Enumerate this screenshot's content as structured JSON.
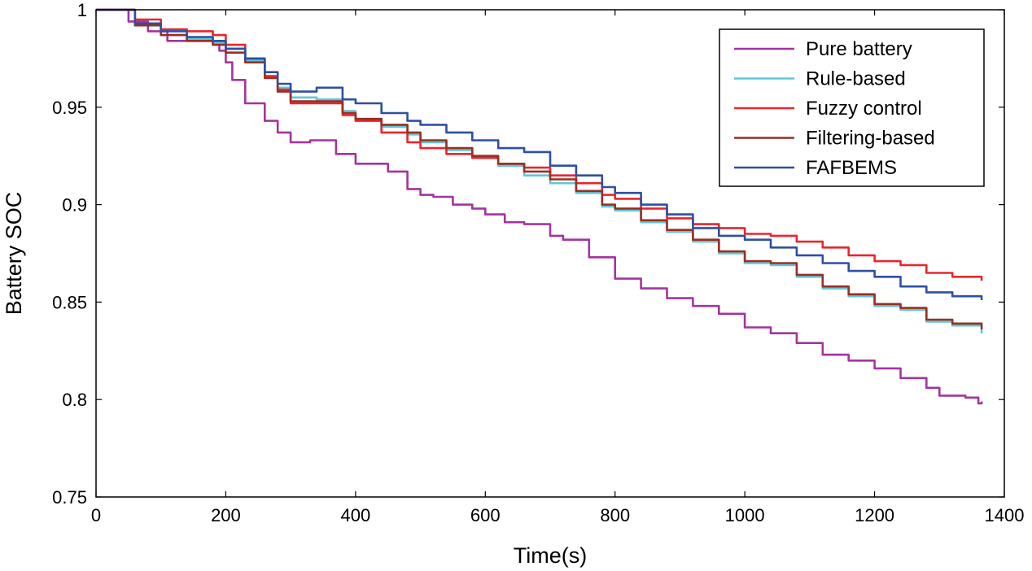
{
  "chart_data": {
    "type": "line",
    "title": "",
    "xlabel": "Time(s)",
    "ylabel": "Battery SOC",
    "xlim": [
      0,
      1400
    ],
    "ylim": [
      0.75,
      1.0
    ],
    "grid": false,
    "legend_position": "top-right",
    "x_ticks": [
      0,
      200,
      400,
      600,
      800,
      1000,
      1200,
      1400
    ],
    "x_tick_labels": [
      "0",
      "200",
      "400",
      "600",
      "800",
      "1000",
      "1200",
      "1400"
    ],
    "y_ticks": [
      0.75,
      0.8,
      0.85,
      0.9,
      0.95,
      1.0
    ],
    "y_tick_labels": [
      "0.75",
      "0.8",
      "0.85",
      "0.9",
      "0.95",
      "1"
    ],
    "series": [
      {
        "name": "Pure battery",
        "color": "#a3349e",
        "x": [
          0,
          20,
          50,
          80,
          110,
          140,
          170,
          190,
          200,
          210,
          230,
          260,
          280,
          300,
          330,
          350,
          370,
          400,
          420,
          450,
          480,
          500,
          520,
          550,
          580,
          600,
          630,
          660,
          700,
          720,
          760,
          800,
          840,
          880,
          920,
          960,
          1000,
          1040,
          1080,
          1120,
          1160,
          1200,
          1240,
          1280,
          1300,
          1340,
          1360,
          1365
        ],
        "values": [
          1.0,
          1.0,
          0.994,
          0.989,
          0.984,
          0.984,
          0.984,
          0.979,
          0.973,
          0.964,
          0.952,
          0.943,
          0.937,
          0.932,
          0.933,
          0.933,
          0.926,
          0.921,
          0.921,
          0.917,
          0.908,
          0.905,
          0.904,
          0.9,
          0.898,
          0.895,
          0.891,
          0.89,
          0.884,
          0.882,
          0.873,
          0.862,
          0.857,
          0.852,
          0.848,
          0.844,
          0.837,
          0.834,
          0.829,
          0.823,
          0.82,
          0.816,
          0.811,
          0.806,
          0.802,
          0.801,
          0.798,
          0.799
        ]
      },
      {
        "name": "Rule-based",
        "color": "#5dc8d8",
        "x": [
          0,
          20,
          60,
          100,
          140,
          180,
          200,
          230,
          260,
          280,
          300,
          340,
          380,
          400,
          440,
          480,
          500,
          540,
          580,
          620,
          660,
          700,
          740,
          780,
          800,
          840,
          880,
          920,
          960,
          1000,
          1040,
          1080,
          1120,
          1160,
          1200,
          1240,
          1280,
          1320,
          1365
        ],
        "values": [
          1.0,
          1.0,
          0.993,
          0.987,
          0.985,
          0.983,
          0.98,
          0.974,
          0.966,
          0.96,
          0.955,
          0.954,
          0.948,
          0.944,
          0.94,
          0.936,
          0.932,
          0.928,
          0.924,
          0.92,
          0.915,
          0.911,
          0.906,
          0.899,
          0.897,
          0.891,
          0.886,
          0.881,
          0.875,
          0.87,
          0.869,
          0.863,
          0.857,
          0.853,
          0.848,
          0.846,
          0.84,
          0.838,
          0.834
        ]
      },
      {
        "name": "Fuzzy control",
        "color": "#e8262c",
        "x": [
          0,
          20,
          60,
          100,
          140,
          180,
          200,
          230,
          260,
          280,
          300,
          340,
          380,
          400,
          440,
          480,
          500,
          540,
          580,
          620,
          660,
          700,
          740,
          780,
          800,
          840,
          880,
          920,
          960,
          1000,
          1040,
          1080,
          1120,
          1160,
          1200,
          1240,
          1280,
          1320,
          1365
        ],
        "values": [
          1.0,
          1.0,
          0.995,
          0.99,
          0.989,
          0.987,
          0.982,
          0.975,
          0.966,
          0.959,
          0.952,
          0.952,
          0.946,
          0.943,
          0.937,
          0.932,
          0.929,
          0.926,
          0.924,
          0.921,
          0.919,
          0.915,
          0.911,
          0.905,
          0.903,
          0.898,
          0.893,
          0.89,
          0.888,
          0.885,
          0.884,
          0.881,
          0.878,
          0.874,
          0.871,
          0.869,
          0.865,
          0.863,
          0.861
        ]
      },
      {
        "name": "Filtering-based",
        "color": "#9a2e22",
        "x": [
          0,
          20,
          60,
          100,
          140,
          180,
          200,
          230,
          260,
          280,
          300,
          340,
          380,
          400,
          440,
          480,
          500,
          540,
          580,
          620,
          660,
          700,
          740,
          780,
          800,
          840,
          880,
          920,
          960,
          1000,
          1040,
          1080,
          1120,
          1160,
          1200,
          1240,
          1280,
          1320,
          1365
        ],
        "values": [
          1.0,
          1.0,
          0.992,
          0.987,
          0.984,
          0.982,
          0.978,
          0.973,
          0.965,
          0.958,
          0.953,
          0.953,
          0.947,
          0.944,
          0.941,
          0.937,
          0.933,
          0.929,
          0.925,
          0.921,
          0.917,
          0.913,
          0.907,
          0.9,
          0.898,
          0.892,
          0.887,
          0.882,
          0.876,
          0.871,
          0.87,
          0.864,
          0.858,
          0.854,
          0.849,
          0.847,
          0.841,
          0.839,
          0.836
        ]
      },
      {
        "name": "FAFBEMS",
        "color": "#2e4fa3",
        "x": [
          0,
          20,
          60,
          100,
          140,
          180,
          200,
          230,
          260,
          280,
          300,
          340,
          380,
          400,
          440,
          480,
          500,
          540,
          580,
          620,
          660,
          700,
          740,
          780,
          800,
          840,
          880,
          920,
          960,
          1000,
          1040,
          1080,
          1120,
          1160,
          1200,
          1240,
          1280,
          1320,
          1365
        ],
        "values": [
          1.0,
          1.0,
          0.993,
          0.989,
          0.986,
          0.984,
          0.98,
          0.975,
          0.968,
          0.962,
          0.958,
          0.96,
          0.954,
          0.952,
          0.947,
          0.943,
          0.941,
          0.937,
          0.933,
          0.929,
          0.927,
          0.92,
          0.915,
          0.909,
          0.906,
          0.9,
          0.895,
          0.888,
          0.884,
          0.882,
          0.878,
          0.874,
          0.87,
          0.866,
          0.863,
          0.858,
          0.855,
          0.853,
          0.851
        ]
      }
    ]
  }
}
